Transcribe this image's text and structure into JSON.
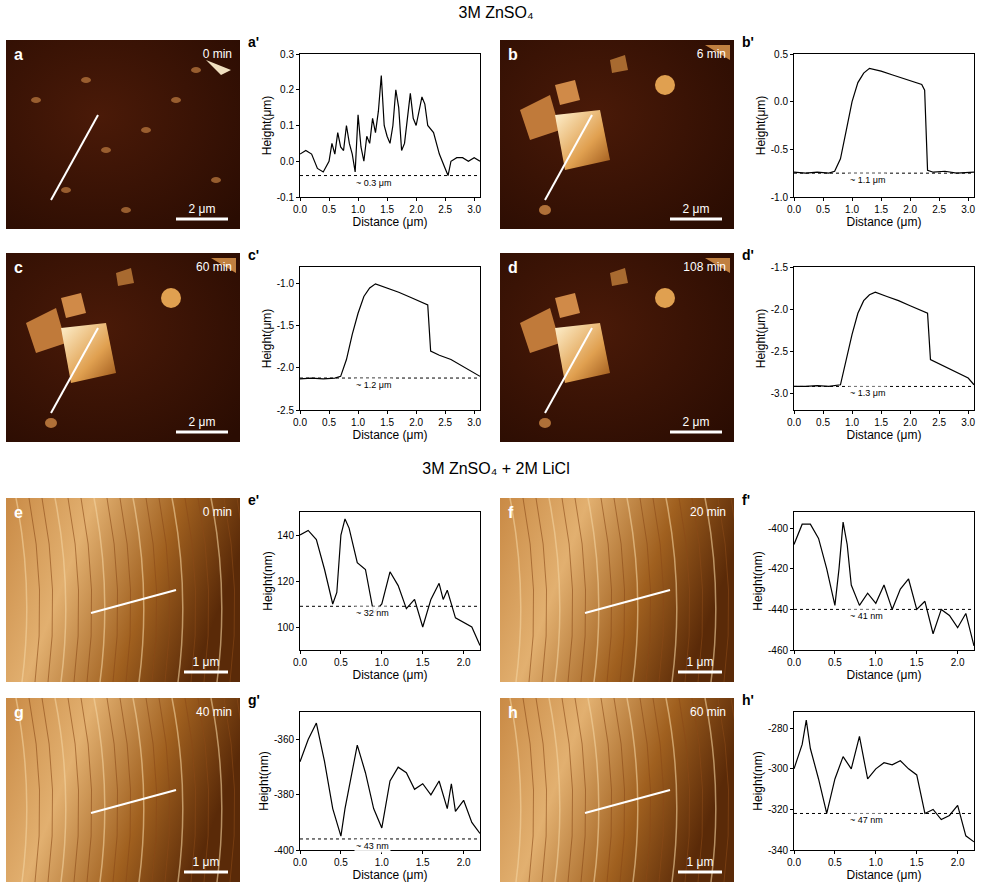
{
  "groups": [
    "3M ZnSO₄",
    "3M ZnSO₄ + 2M LiCl"
  ],
  "images": [
    {
      "label": "a",
      "time": "0 min",
      "scale_bar": "2 μm"
    },
    {
      "label": "b",
      "time": "6 min",
      "scale_bar": "2 μm"
    },
    {
      "label": "c",
      "time": "60 min",
      "scale_bar": "2 μm"
    },
    {
      "label": "d",
      "time": "108 min",
      "scale_bar": "2 μm"
    },
    {
      "label": "e",
      "time": "0 min",
      "scale_bar": "1 μm"
    },
    {
      "label": "f",
      "time": "20 min",
      "scale_bar": "1 μm"
    },
    {
      "label": "g",
      "time": "40 min",
      "scale_bar": "1 μm"
    },
    {
      "label": "h",
      "time": "60 min",
      "scale_bar": "1 μm"
    }
  ],
  "chart_data": [
    {
      "type": "line",
      "label": "a'",
      "xlabel": "Distance (μm)",
      "ylabel": "Height(μm)",
      "x": [
        0,
        0.1,
        0.2,
        0.3,
        0.4,
        0.5,
        0.55,
        0.6,
        0.65,
        0.7,
        0.75,
        0.8,
        0.85,
        0.9,
        0.95,
        1.0,
        1.05,
        1.1,
        1.15,
        1.2,
        1.25,
        1.3,
        1.35,
        1.4,
        1.45,
        1.5,
        1.55,
        1.6,
        1.65,
        1.7,
        1.75,
        1.8,
        1.9,
        1.95,
        2.0,
        2.1,
        2.15,
        2.2,
        2.3,
        2.4,
        2.5,
        2.55,
        2.6,
        2.7,
        2.8,
        2.9,
        3.0,
        3.1
      ],
      "values": [
        0.02,
        0.03,
        0.02,
        -0.02,
        -0.03,
        0.0,
        0.05,
        0.02,
        0.08,
        0.04,
        0.03,
        0.1,
        0.05,
        0.02,
        -0.03,
        0.13,
        0.04,
        0.0,
        0.07,
        0.05,
        0.12,
        0.08,
        0.14,
        0.24,
        0.1,
        0.07,
        0.05,
        0.1,
        0.2,
        0.15,
        0.03,
        0.05,
        0.19,
        0.12,
        0.1,
        0.18,
        0.16,
        0.1,
        0.08,
        0.02,
        -0.02,
        -0.04,
        0.0,
        0.01,
        0.01,
        0.0,
        0.01,
        0.0
      ],
      "xlim": [
        0,
        3.1
      ],
      "xticks": [
        {
          "value": 0,
          "label": "0.0"
        },
        0.5,
        {
          "value": 1,
          "label": "1.0"
        },
        1.5,
        {
          "value": 2,
          "label": "2.0"
        },
        2.5,
        {
          "value": 3,
          "label": "3.0"
        }
      ],
      "ylim": [
        -0.1,
        0.3
      ],
      "yticks": [
        -0.1,
        {
          "value": 0,
          "label": "0.0"
        },
        0.1,
        0.2,
        0.3
      ],
      "baseline": {
        "value": -0.04,
        "label": "~ 0.3 μm"
      }
    },
    {
      "type": "line",
      "label": "b'",
      "xlabel": "Distance (μm)",
      "ylabel": "Height(μm)",
      "x": [
        0,
        0.2,
        0.4,
        0.6,
        0.7,
        0.8,
        0.9,
        1.0,
        1.1,
        1.2,
        1.3,
        1.5,
        1.7,
        1.9,
        2.1,
        2.2,
        2.25,
        2.3,
        2.4,
        2.6,
        2.8,
        3.0,
        3.1
      ],
      "values": [
        -0.74,
        -0.75,
        -0.74,
        -0.75,
        -0.73,
        -0.6,
        -0.3,
        0.0,
        0.2,
        0.3,
        0.35,
        0.32,
        0.28,
        0.24,
        0.2,
        0.18,
        0.12,
        -0.72,
        -0.74,
        -0.73,
        -0.75,
        -0.74,
        -0.74
      ],
      "xlim": [
        0,
        3.1
      ],
      "xticks": [
        {
          "value": 0,
          "label": "0.0"
        },
        0.5,
        {
          "value": 1,
          "label": "1.0"
        },
        1.5,
        {
          "value": 2,
          "label": "2.0"
        },
        2.5,
        {
          "value": 3,
          "label": "3.0"
        }
      ],
      "ylim": [
        -1.0,
        0.5
      ],
      "yticks": [
        {
          "value": -1,
          "label": "-1.0"
        },
        -0.5,
        {
          "value": 0,
          "label": "0.0"
        },
        0.5
      ],
      "baseline": {
        "value": -0.75,
        "label": "~ 1.1 μm"
      }
    },
    {
      "type": "line",
      "label": "c'",
      "xlabel": "Distance (μm)",
      "ylabel": "Height(μm)",
      "x": [
        0,
        0.2,
        0.4,
        0.6,
        0.7,
        0.8,
        0.9,
        1.0,
        1.1,
        1.2,
        1.3,
        1.5,
        1.7,
        1.9,
        2.1,
        2.2,
        2.25,
        2.4,
        2.6,
        2.8,
        3.0,
        3.1
      ],
      "values": [
        -2.13,
        -2.12,
        -2.13,
        -2.12,
        -2.1,
        -1.9,
        -1.6,
        -1.35,
        -1.15,
        -1.05,
        -1.0,
        -1.05,
        -1.1,
        -1.16,
        -1.22,
        -1.25,
        -1.8,
        -1.85,
        -1.9,
        -1.98,
        -2.06,
        -2.1
      ],
      "xlim": [
        0,
        3.1
      ],
      "xticks": [
        {
          "value": 0,
          "label": "0.0"
        },
        0.5,
        {
          "value": 1,
          "label": "1.0"
        },
        1.5,
        {
          "value": 2,
          "label": "2.0"
        },
        2.5,
        {
          "value": 3,
          "label": "3.0"
        }
      ],
      "ylim": [
        -2.5,
        -0.8
      ],
      "yticks": [
        -2.5,
        {
          "value": -2,
          "label": "-2.0"
        },
        -1.5,
        {
          "value": -1,
          "label": "-1.0"
        }
      ],
      "baseline": {
        "value": -2.12,
        "label": "~ 1.2 μm"
      }
    },
    {
      "type": "line",
      "label": "d'",
      "xlabel": "Distance (μm)",
      "ylabel": "Height(μm)",
      "x": [
        0,
        0.2,
        0.4,
        0.6,
        0.8,
        0.9,
        1.0,
        1.1,
        1.2,
        1.3,
        1.4,
        1.6,
        1.8,
        2.0,
        2.2,
        2.3,
        2.35,
        2.5,
        2.7,
        2.9,
        3.0,
        3.1
      ],
      "values": [
        -2.92,
        -2.92,
        -2.91,
        -2.92,
        -2.9,
        -2.6,
        -2.3,
        -2.05,
        -1.9,
        -1.83,
        -1.8,
        -1.85,
        -1.9,
        -1.96,
        -2.02,
        -2.05,
        -2.6,
        -2.65,
        -2.72,
        -2.78,
        -2.82,
        -2.9
      ],
      "xlim": [
        0,
        3.1
      ],
      "xticks": [
        {
          "value": 0,
          "label": "0.0"
        },
        0.5,
        {
          "value": 1,
          "label": "1.0"
        },
        1.5,
        {
          "value": 2,
          "label": "2.0"
        },
        2.5,
        {
          "value": 3,
          "label": "3.0"
        }
      ],
      "ylim": [
        -3.2,
        -1.5
      ],
      "yticks": [
        {
          "value": -3,
          "label": "-3.0"
        },
        -2.5,
        {
          "value": -2,
          "label": "-2.0"
        },
        -1.5
      ],
      "baseline": {
        "value": -2.92,
        "label": "~ 1.3 μm"
      }
    },
    {
      "type": "line",
      "label": "e'",
      "xlabel": "Distance (μm)",
      "ylabel": "Height(nm)",
      "x": [
        0,
        0.1,
        0.2,
        0.3,
        0.4,
        0.45,
        0.5,
        0.55,
        0.6,
        0.7,
        0.8,
        0.9,
        1.0,
        1.1,
        1.2,
        1.3,
        1.4,
        1.5,
        1.6,
        1.7,
        1.75,
        1.8,
        1.9,
        2.0,
        2.1,
        2.2
      ],
      "values": [
        140,
        142,
        138,
        125,
        110,
        115,
        140,
        147,
        143,
        128,
        125,
        106,
        110,
        124,
        118,
        108,
        112,
        100,
        112,
        119,
        112,
        116,
        104,
        102,
        100,
        92
      ],
      "xlim": [
        0,
        2.2
      ],
      "xticks": [
        {
          "value": 0,
          "label": "0.0"
        },
        0.5,
        {
          "value": 1,
          "label": "1.0"
        },
        1.5,
        {
          "value": 2,
          "label": "2.0"
        }
      ],
      "ylim": [
        90,
        150
      ],
      "yticks": [
        100,
        120,
        140
      ],
      "baseline": {
        "value": 109,
        "label": "~ 32 nm"
      }
    },
    {
      "type": "line",
      "label": "f'",
      "xlabel": "Distance (μm)",
      "ylabel": "Height(nm)",
      "x": [
        0,
        0.1,
        0.2,
        0.3,
        0.4,
        0.5,
        0.55,
        0.6,
        0.65,
        0.7,
        0.8,
        0.9,
        1.0,
        1.1,
        1.2,
        1.3,
        1.4,
        1.5,
        1.6,
        1.7,
        1.8,
        1.9,
        2.0,
        2.1,
        2.2
      ],
      "values": [
        -408,
        -398,
        -398,
        -405,
        -420,
        -438,
        -420,
        -397,
        -408,
        -428,
        -438,
        -432,
        -437,
        -428,
        -440,
        -430,
        -425,
        -440,
        -436,
        -452,
        -440,
        -443,
        -449,
        -442,
        -458
      ],
      "xlim": [
        0,
        2.2
      ],
      "xticks": [
        {
          "value": 0,
          "label": "0.0"
        },
        0.5,
        {
          "value": 1,
          "label": "1.0"
        },
        1.5,
        {
          "value": 2,
          "label": "2.0"
        }
      ],
      "ylim": [
        -460,
        -392
      ],
      "yticks": [
        -460,
        -440,
        -420,
        -400
      ],
      "baseline": {
        "value": -440,
        "label": "~ 41 nm"
      }
    },
    {
      "type": "line",
      "label": "g'",
      "xlabel": "Distance (μm)",
      "ylabel": "Height(nm)",
      "x": [
        0,
        0.1,
        0.2,
        0.3,
        0.4,
        0.5,
        0.55,
        0.7,
        0.8,
        0.9,
        1.0,
        1.1,
        1.2,
        1.3,
        1.4,
        1.5,
        1.6,
        1.7,
        1.8,
        1.85,
        1.9,
        2.0,
        2.1,
        2.2
      ],
      "values": [
        -368,
        -360,
        -354,
        -368,
        -385,
        -395,
        -385,
        -362,
        -372,
        -385,
        -392,
        -375,
        -370,
        -372,
        -378,
        -376,
        -380,
        -375,
        -385,
        -376,
        -386,
        -382,
        -390,
        -394
      ],
      "xlim": [
        0,
        2.2
      ],
      "xticks": [
        {
          "value": 0,
          "label": "0.0"
        },
        0.5,
        {
          "value": 1,
          "label": "1.0"
        },
        1.5,
        {
          "value": 2,
          "label": "2.0"
        }
      ],
      "ylim": [
        -400,
        -350
      ],
      "yticks": [
        -400,
        -380,
        -360
      ],
      "baseline": {
        "value": -396,
        "label": "~ 43 nm"
      }
    },
    {
      "type": "line",
      "label": "h'",
      "xlabel": "Distance (μm)",
      "ylabel": "Height(nm)",
      "x": [
        0,
        0.1,
        0.15,
        0.2,
        0.3,
        0.4,
        0.5,
        0.6,
        0.7,
        0.8,
        0.9,
        1.0,
        1.1,
        1.2,
        1.3,
        1.4,
        1.5,
        1.6,
        1.7,
        1.8,
        1.9,
        2.0,
        2.1,
        2.2
      ],
      "values": [
        -300,
        -288,
        -276,
        -290,
        -305,
        -322,
        -305,
        -294,
        -300,
        -284,
        -305,
        -300,
        -297,
        -298,
        -296,
        -300,
        -303,
        -322,
        -320,
        -325,
        -323,
        -318,
        -333,
        -336
      ],
      "xlim": [
        0,
        2.2
      ],
      "xticks": [
        {
          "value": 0,
          "label": "0.0"
        },
        0.5,
        {
          "value": 1,
          "label": "1.0"
        },
        1.5,
        {
          "value": 2,
          "label": "2.0"
        }
      ],
      "ylim": [
        -340,
        -272
      ],
      "yticks": [
        -340,
        -320,
        -300,
        -280
      ],
      "baseline": {
        "value": -322,
        "label": "~ 47 nm"
      }
    }
  ]
}
